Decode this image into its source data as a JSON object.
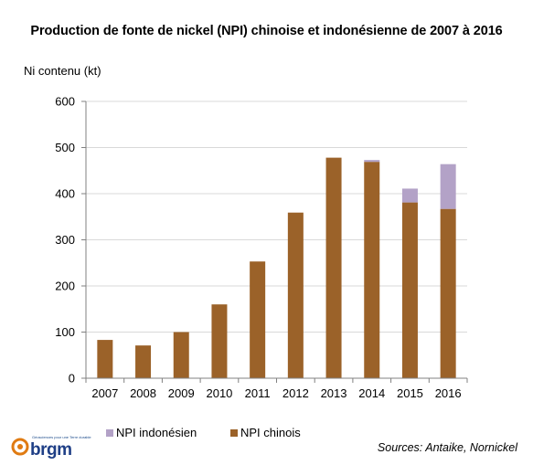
{
  "chart_data": {
    "type": "bar",
    "stacked": true,
    "title": "Production de fonte de nickel (NPI) chinoise et indonésienne de 2007 à 2016",
    "ylabel": "Ni contenu  (kt)",
    "xlabel": "",
    "ylim": [
      0,
      600
    ],
    "yticks": [
      "0",
      "100",
      "200",
      "300",
      "400",
      "500",
      "600"
    ],
    "grid": true,
    "legend_position": "bottom",
    "categories": [
      "2007",
      "2008",
      "2009",
      "2010",
      "2011",
      "2012",
      "2013",
      "2014",
      "2015",
      "2016"
    ],
    "series": [
      {
        "name": "NPI chinois",
        "color": "#9b6229",
        "values": [
          83,
          71,
          100,
          160,
          253,
          359,
          478,
          469,
          381,
          367
        ]
      },
      {
        "name": "NPI indonésien",
        "color": "#b3a2c7",
        "values": [
          0,
          0,
          0,
          0,
          0,
          0,
          0,
          4,
          30,
          97
        ]
      }
    ]
  },
  "legend": {
    "item1": "NPI indonésien",
    "item2": "NPI chinois",
    "color1": "#b3a2c7",
    "color2": "#9b6229"
  },
  "footer": {
    "source": "Sources: Antaike, Nornickel",
    "logo_text": "brgm",
    "logo_tagline": "Géosciences pour une Terre durable"
  }
}
